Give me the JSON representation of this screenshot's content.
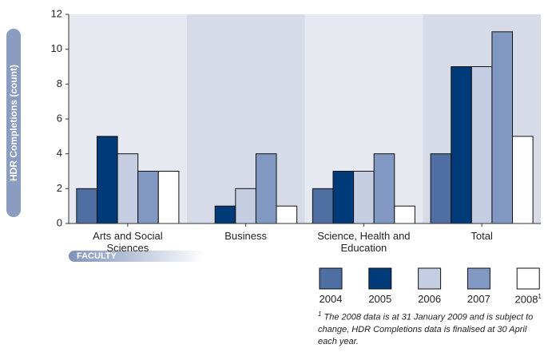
{
  "chart_data": {
    "type": "bar",
    "y_axis_label": "HDR Completions (count)",
    "x_axis_label": "FACULTY",
    "categories": [
      "Arts and Social Sciences",
      "Business",
      "Science, Health and Education",
      "Total"
    ],
    "series": [
      {
        "name": "2004",
        "color": "#4f6fa3",
        "values": [
          2,
          0,
          2,
          4
        ]
      },
      {
        "name": "2005",
        "color": "#003a78",
        "values": [
          5,
          1,
          3,
          9
        ]
      },
      {
        "name": "2006",
        "color": "#c5cde3",
        "values": [
          4,
          2,
          3,
          9
        ]
      },
      {
        "name": "2007",
        "color": "#8198c2",
        "values": [
          3,
          4,
          4,
          11
        ]
      },
      {
        "name": "2008",
        "color": "#ffffff",
        "values": [
          3,
          1,
          1,
          5
        ]
      }
    ],
    "legend_marker": "1",
    "footnote_marker": "1",
    "footnote": "The 2008 data is at 31 January 2009 and is subject to change, HDR Completions data is finalised at 30 April each year.",
    "ylim": [
      0,
      12
    ],
    "yticks": [
      0,
      2,
      4,
      6,
      8,
      10,
      12
    ],
    "band_colors": [
      "#e7e9f0",
      "#d6dbe7"
    ]
  }
}
